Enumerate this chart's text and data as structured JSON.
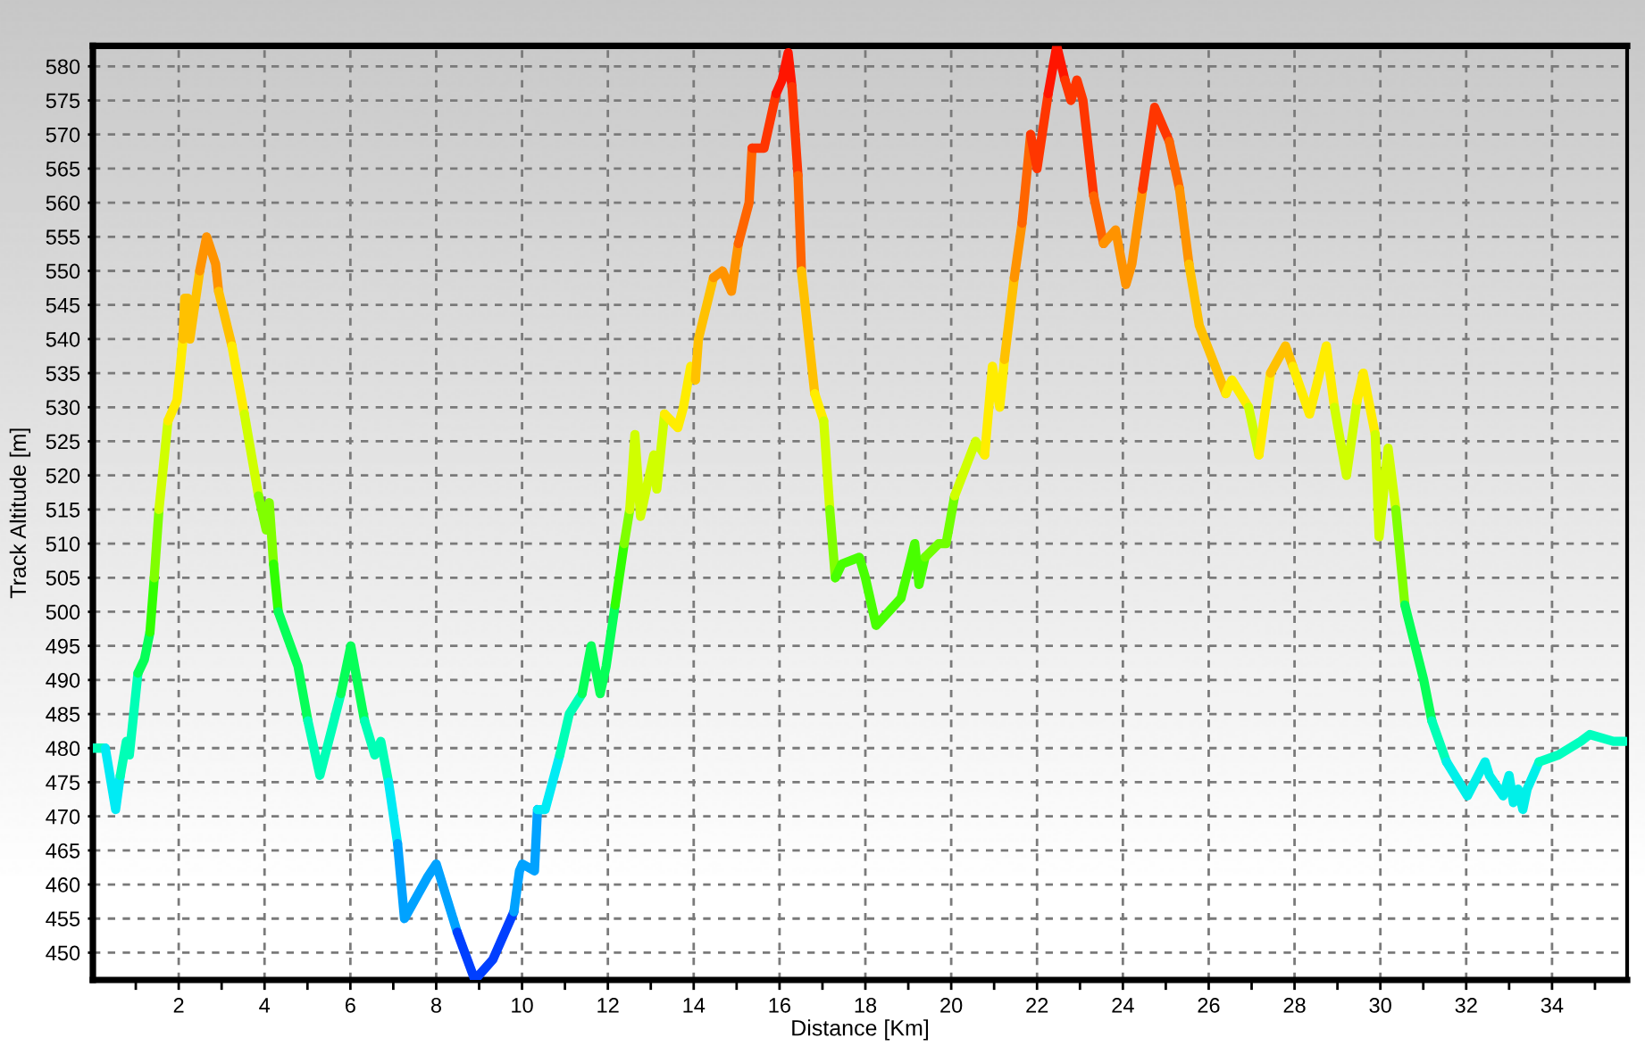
{
  "chart_data": {
    "type": "line",
    "xlabel": "Distance [Km]",
    "ylabel": "Track Altitude [m]",
    "xlim": [
      0,
      35.75
    ],
    "ylim": [
      446,
      583
    ],
    "xticks": [
      {
        "value": 1,
        "label": null
      },
      2,
      {
        "value": 3,
        "label": null
      },
      4,
      {
        "value": 5,
        "label": null
      },
      6,
      {
        "value": 7,
        "label": null
      },
      8,
      {
        "value": 9,
        "label": null
      },
      10,
      {
        "value": 11,
        "label": null
      },
      12,
      {
        "value": 13,
        "label": null
      },
      14,
      {
        "value": 15,
        "label": null
      },
      16,
      {
        "value": 17,
        "label": null
      },
      18,
      {
        "value": 19,
        "label": null
      },
      20,
      {
        "value": 21,
        "label": null
      },
      22,
      {
        "value": 23,
        "label": null
      },
      24,
      {
        "value": 25,
        "label": null
      },
      26,
      {
        "value": 27,
        "label": null
      },
      28,
      {
        "value": 29,
        "label": null
      },
      30,
      {
        "value": 31,
        "label": null
      },
      32,
      {
        "value": 33,
        "label": null
      },
      34,
      {
        "value": 35,
        "label": null
      }
    ],
    "yticks": [
      450,
      455,
      460,
      465,
      470,
      475,
      480,
      485,
      490,
      495,
      500,
      505,
      510,
      515,
      520,
      525,
      530,
      535,
      540,
      545,
      550,
      555,
      560,
      565,
      570,
      575,
      580
    ],
    "grid": true,
    "line_style": "solid",
    "series": [
      {
        "x": [
          0,
          0.29
        ],
        "values": [
          480,
          480
        ],
        "color": "#00ffb6"
      },
      {
        "x": [
          0.29,
          0.53,
          0.64
        ],
        "values": [
          480,
          471,
          476
        ],
        "color": "#00ebf4"
      },
      {
        "x": [
          0.64,
          0.78,
          0.85,
          1.05
        ],
        "values": [
          476,
          481,
          479,
          491
        ],
        "color": "#00ffb6"
      },
      {
        "x": [
          1.05,
          1.2,
          1.33
        ],
        "values": [
          491,
          493,
          497
        ],
        "color": "#06ff58"
      },
      {
        "x": [
          1.33,
          1.43
        ],
        "values": [
          497,
          505
        ],
        "color": "#30ff00"
      },
      {
        "x": [
          1.43,
          1.54
        ],
        "values": [
          505,
          515
        ],
        "color": "#80ff00"
      },
      {
        "x": [
          1.54,
          1.75
        ],
        "values": [
          515,
          528
        ],
        "color": "#d0ff00"
      },
      {
        "x": [
          1.75,
          1.96,
          2.1
        ],
        "values": [
          528,
          531,
          540
        ],
        "color": "#ffed00"
      },
      {
        "x": [
          2.1,
          2.14,
          2.21,
          2.26,
          2.49
        ],
        "values": [
          540,
          546,
          546,
          540,
          550
        ],
        "color": "#ffc100"
      },
      {
        "x": [
          2.49,
          2.65,
          2.86,
          2.93
        ],
        "values": [
          550,
          555,
          551,
          547
        ],
        "color": "#ff9300"
      },
      {
        "x": [
          2.93,
          3.24
        ],
        "values": [
          547,
          539
        ],
        "color": "#ffc100"
      },
      {
        "x": [
          3.24,
          3.53
        ],
        "values": [
          539,
          529
        ],
        "color": "#ffed00"
      },
      {
        "x": [
          3.53,
          3.86
        ],
        "values": [
          529,
          517
        ],
        "color": "#d0ff00"
      },
      {
        "x": [
          3.86,
          4.04,
          4.11,
          4.21
        ],
        "values": [
          517,
          512,
          516,
          507
        ],
        "color": "#80ff00"
      },
      {
        "x": [
          4.21,
          4.32
        ],
        "values": [
          507,
          500
        ],
        "color": "#30ff00"
      },
      {
        "x": [
          4.32,
          4.78,
          5.01
        ],
        "values": [
          500,
          492,
          484
        ],
        "color": "#06ff58"
      },
      {
        "x": [
          5.01,
          5.29,
          5.78
        ],
        "values": [
          484,
          476,
          488
        ],
        "color": "#00ffb6"
      },
      {
        "x": [
          5.78,
          6.01,
          6.33
        ],
        "values": [
          488,
          495,
          484
        ],
        "color": "#06ff58"
      },
      {
        "x": [
          6.33,
          6.57,
          6.71,
          6.89
        ],
        "values": [
          484,
          479,
          481,
          475
        ],
        "color": "#00ffb6"
      },
      {
        "x": [
          6.89,
          7.1
        ],
        "values": [
          475,
          466
        ],
        "color": "#00ebf4"
      },
      {
        "x": [
          7.1,
          7.26,
          7.79,
          8.0,
          8.49
        ],
        "values": [
          466,
          455,
          461,
          463,
          453
        ],
        "color": "#00a2ff"
      },
      {
        "x": [
          8.49,
          8.9,
          9.32,
          9.81
        ],
        "values": [
          453,
          446,
          449,
          456
        ],
        "color": "#003fff"
      },
      {
        "x": [
          9.81,
          9.94,
          10.01,
          10.29,
          10.36
        ],
        "values": [
          456,
          462,
          463,
          462,
          471
        ],
        "color": "#00a2ff"
      },
      {
        "x": [
          10.36,
          10.54,
          10.88
        ],
        "values": [
          471,
          471,
          479
        ],
        "color": "#00ebf4"
      },
      {
        "x": [
          10.88,
          11.1,
          11.4
        ],
        "values": [
          479,
          485,
          488
        ],
        "color": "#00ffb6"
      },
      {
        "x": [
          11.4,
          11.61,
          11.82,
          11.96,
          12.17
        ],
        "values": [
          488,
          495,
          488,
          492,
          501
        ],
        "color": "#06ff58"
      },
      {
        "x": [
          12.17,
          12.38
        ],
        "values": [
          501,
          510
        ],
        "color": "#30ff00"
      },
      {
        "x": [
          12.38,
          12.51
        ],
        "values": [
          510,
          515
        ],
        "color": "#80ff00"
      },
      {
        "x": [
          12.51,
          12.63,
          12.76,
          13.07,
          13.14,
          13.32
        ],
        "values": [
          515,
          526,
          514,
          523,
          518,
          529
        ],
        "color": "#d0ff00"
      },
      {
        "x": [
          13.32,
          13.63,
          13.76,
          13.93,
          14.04
        ],
        "values": [
          529,
          527,
          530,
          536,
          534
        ],
        "color": "#ffed00"
      },
      {
        "x": [
          14.04,
          14.11,
          14.46
        ],
        "values": [
          534,
          540,
          549
        ],
        "color": "#ffc100"
      },
      {
        "x": [
          14.46,
          14.67,
          14.88,
          15.04
        ],
        "values": [
          549,
          550,
          547,
          554
        ],
        "color": "#ff9300"
      },
      {
        "x": [
          15.04,
          15.29,
          15.36
        ],
        "values": [
          554,
          560,
          568
        ],
        "color": "#ff6500"
      },
      {
        "x": [
          15.36,
          15.64,
          15.92
        ],
        "values": [
          568,
          568,
          576
        ],
        "color": "#ff3600"
      },
      {
        "x": [
          15.92,
          16.06,
          16.2,
          16.29
        ],
        "values": [
          576,
          578,
          582,
          577
        ],
        "color": "#ff1500"
      },
      {
        "x": [
          16.29,
          16.43
        ],
        "values": [
          577,
          564
        ],
        "color": "#ff3600"
      },
      {
        "x": [
          16.43,
          16.51
        ],
        "values": [
          564,
          550
        ],
        "color": "#ff6500"
      },
      {
        "x": [
          16.51,
          16.82
        ],
        "values": [
          550,
          532
        ],
        "color": "#ffc100"
      },
      {
        "x": [
          16.82,
          17.03
        ],
        "values": [
          532,
          528
        ],
        "color": "#ffed00"
      },
      {
        "x": [
          17.03,
          17.17
        ],
        "values": [
          528,
          515
        ],
        "color": "#d0ff00"
      },
      {
        "x": [
          17.17,
          17.3
        ],
        "values": [
          515,
          505
        ],
        "color": "#80ff00"
      },
      {
        "x": [
          17.3,
          17.45,
          17.86,
          18.0,
          18.25,
          18.83,
          19.15,
          19.25,
          19.39
        ],
        "values": [
          505,
          507,
          508,
          505,
          498,
          502,
          510,
          504,
          508
        ],
        "color": "#48ff00"
      },
      {
        "x": [
          19.39,
          19.71,
          19.88,
          20.08
        ],
        "values": [
          508,
          510,
          510,
          517
        ],
        "color": "#70ff00"
      },
      {
        "x": [
          20.08,
          20.57,
          20.78
        ],
        "values": [
          517,
          525,
          523
        ],
        "color": "#d0ff00"
      },
      {
        "x": [
          20.78,
          20.96,
          21.13,
          21.24
        ],
        "values": [
          523,
          536,
          530,
          537
        ],
        "color": "#ffed00"
      },
      {
        "x": [
          21.24,
          21.47
        ],
        "values": [
          537,
          549
        ],
        "color": "#ffc100"
      },
      {
        "x": [
          21.47,
          21.65
        ],
        "values": [
          549,
          557
        ],
        "color": "#ff9300"
      },
      {
        "x": [
          21.65,
          21.85
        ],
        "values": [
          557,
          570
        ],
        "color": "#ff6500"
      },
      {
        "x": [
          21.85,
          22.0,
          22.26
        ],
        "values": [
          570,
          565,
          576
        ],
        "color": "#ff3600"
      },
      {
        "x": [
          22.26,
          22.46,
          22.65
        ],
        "values": [
          576,
          583,
          578
        ],
        "color": "#ff1500"
      },
      {
        "x": [
          22.65,
          22.79,
          22.93,
          23.07,
          23.32
        ],
        "values": [
          578,
          575,
          578,
          575,
          561
        ],
        "color": "#ff3600"
      },
      {
        "x": [
          23.32,
          23.55
        ],
        "values": [
          561,
          554
        ],
        "color": "#ff6500"
      },
      {
        "x": [
          23.55,
          23.83,
          24.07,
          24.21,
          24.46
        ],
        "values": [
          554,
          556,
          548,
          551,
          562
        ],
        "color": "#ff9300"
      },
      {
        "x": [
          24.46,
          24.74,
          25.08
        ],
        "values": [
          562,
          574,
          569
        ],
        "color": "#ff3600"
      },
      {
        "x": [
          25.08,
          25.32
        ],
        "values": [
          569,
          562
        ],
        "color": "#ff6500"
      },
      {
        "x": [
          25.32,
          25.54
        ],
        "values": [
          562,
          551
        ],
        "color": "#ff9300"
      },
      {
        "x": [
          25.54,
          25.78,
          26.4
        ],
        "values": [
          551,
          542,
          532
        ],
        "color": "#ffc100"
      },
      {
        "x": [
          26.4,
          26.54,
          26.93
        ],
        "values": [
          532,
          534,
          530
        ],
        "color": "#ffed00"
      },
      {
        "x": [
          26.93,
          27.17
        ],
        "values": [
          530,
          523
        ],
        "color": "#d0ff00"
      },
      {
        "x": [
          27.17,
          27.44
        ],
        "values": [
          523,
          535
        ],
        "color": "#ffed00"
      },
      {
        "x": [
          27.44,
          27.79,
          27.96
        ],
        "values": [
          535,
          539,
          536
        ],
        "color": "#ffc100"
      },
      {
        "x": [
          27.96,
          28.35,
          28.74,
          28.93
        ],
        "values": [
          536,
          529,
          539,
          530
        ],
        "color": "#ffed00"
      },
      {
        "x": [
          28.93,
          29.21,
          29.46
        ],
        "values": [
          530,
          520,
          531
        ],
        "color": "#d0ff00"
      },
      {
        "x": [
          29.46,
          29.6,
          29.88
        ],
        "values": [
          531,
          535,
          526
        ],
        "color": "#ffed00"
      },
      {
        "x": [
          29.88,
          29.97,
          30.18,
          30.36
        ],
        "values": [
          526,
          511,
          524,
          515
        ],
        "color": "#d0ff00"
      },
      {
        "x": [
          30.36,
          30.57
        ],
        "values": [
          515,
          501
        ],
        "color": "#80ff00"
      },
      {
        "x": [
          30.57,
          31.01,
          31.2
        ],
        "values": [
          501,
          490,
          484
        ],
        "color": "#06ff58"
      },
      {
        "x": [
          31.2,
          31.54
        ],
        "values": [
          484,
          478
        ],
        "color": "#00ffb6"
      },
      {
        "x": [
          31.54,
          32.03,
          32.44,
          32.54,
          32.86,
          33.0,
          33.1,
          33.21,
          33.32,
          33.42,
          33.7
        ],
        "values": [
          478,
          473,
          478,
          476,
          473,
          476,
          472,
          474,
          471,
          474,
          478
        ],
        "color": "#00f0e9"
      },
      {
        "x": [
          33.7,
          34.15,
          34.67,
          34.88,
          35.43,
          35.71
        ],
        "values": [
          478,
          479,
          481,
          482,
          481,
          481
        ],
        "color": "#00ffbf"
      }
    ]
  }
}
